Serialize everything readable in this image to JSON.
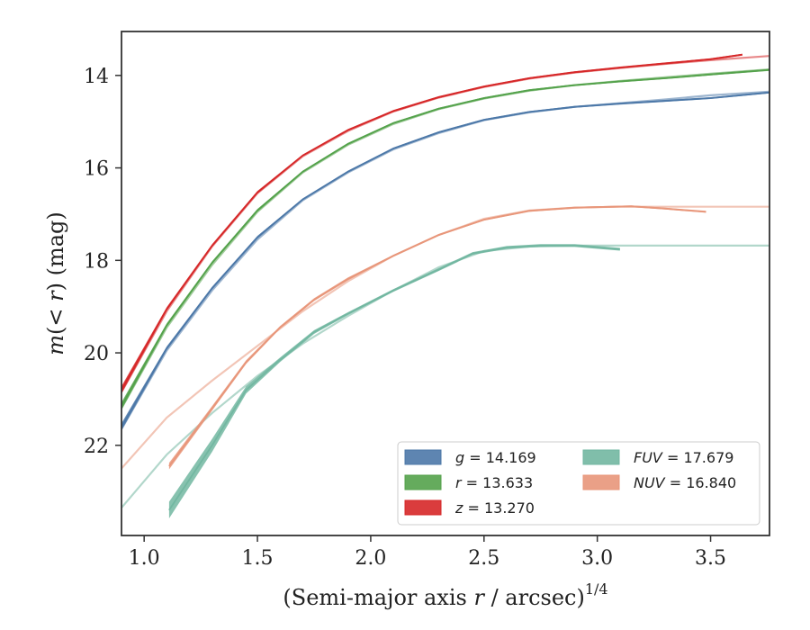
{
  "chart_data": {
    "type": "line",
    "xlabel_prefix": "(Semi-major axis ",
    "xlabel_var": "r",
    "xlabel_suffix": " / arcsec)",
    "xlabel_exp": "1/4",
    "ylabel_var_m": "m",
    "ylabel_mid": "(< ",
    "ylabel_var_r": "r",
    "ylabel_suffix": ") (mag)",
    "xlim": [
      0.9,
      3.76
    ],
    "ylim": [
      23.95,
      13.05
    ],
    "y_inverted": true,
    "xticks": [
      {
        "value": 1.0,
        "label": "1.0"
      },
      {
        "value": 1.5,
        "label": "1.5"
      },
      {
        "value": 2.0,
        "label": "2.0"
      },
      {
        "value": 2.5,
        "label": "2.5"
      },
      {
        "value": 3.0,
        "label": "3.0"
      },
      {
        "value": 3.5,
        "label": "3.5"
      }
    ],
    "yticks": [
      {
        "value": 14,
        "label": "14"
      },
      {
        "value": 16,
        "label": "16"
      },
      {
        "value": 18,
        "label": "18"
      },
      {
        "value": 20,
        "label": "20"
      },
      {
        "value": 22,
        "label": "22"
      }
    ],
    "legend_position": "lower-right",
    "legend_columns": 2,
    "series": [
      {
        "name": "g",
        "total": "14.169",
        "color": "#4c78a8",
        "model": {
          "x": [
            0.9,
            1.1,
            1.3,
            1.5,
            1.7,
            1.9,
            2.1,
            2.3,
            2.5,
            2.7,
            2.9,
            3.1,
            3.3,
            3.5,
            3.76
          ],
          "y": [
            21.65,
            19.95,
            18.65,
            17.55,
            16.7,
            16.1,
            15.6,
            15.25,
            14.97,
            14.8,
            14.68,
            14.6,
            14.52,
            14.43,
            14.35
          ]
        },
        "measured": {
          "x": [
            0.9,
            1.1,
            1.3,
            1.5,
            1.7,
            1.9,
            2.1,
            2.3,
            2.5,
            2.7,
            2.9,
            3.1,
            3.3,
            3.5,
            3.76
          ],
          "y": [
            21.6,
            19.9,
            18.6,
            17.5,
            16.68,
            16.08,
            15.58,
            15.23,
            14.96,
            14.79,
            14.68,
            14.61,
            14.55,
            14.49,
            14.37
          ],
          "band": [
            0.08,
            0.04,
            0.03,
            0.03,
            0.02,
            0.02,
            0.02,
            0.02,
            0.02,
            0.02,
            0.02,
            0.02,
            0.02,
            0.02,
            0.02
          ]
        }
      },
      {
        "name": "r",
        "total": "13.633",
        "color": "#54a24b",
        "model": {
          "x": [
            0.9,
            1.1,
            1.3,
            1.5,
            1.7,
            1.9,
            2.1,
            2.3,
            2.5,
            2.7,
            2.9,
            3.1,
            3.3,
            3.5,
            3.76
          ],
          "y": [
            21.2,
            19.45,
            18.1,
            16.95,
            16.1,
            15.5,
            15.05,
            14.73,
            14.5,
            14.33,
            14.21,
            14.12,
            14.04,
            13.96,
            13.87
          ]
        },
        "measured": {
          "x": [
            0.9,
            1.1,
            1.3,
            1.5,
            1.7,
            1.9,
            2.1,
            2.3,
            2.5,
            2.7,
            2.9,
            3.1,
            3.3,
            3.5,
            3.76
          ],
          "y": [
            21.15,
            19.4,
            18.05,
            16.92,
            16.08,
            15.48,
            15.03,
            14.72,
            14.49,
            14.32,
            14.21,
            14.13,
            14.06,
            13.98,
            13.88
          ],
          "band": [
            0.08,
            0.04,
            0.03,
            0.03,
            0.02,
            0.02,
            0.02,
            0.02,
            0.02,
            0.02,
            0.02,
            0.02,
            0.02,
            0.02,
            0.02
          ]
        }
      },
      {
        "name": "z",
        "total": "13.270",
        "color": "#d62728",
        "model": {
          "x": [
            0.9,
            1.1,
            1.3,
            1.5,
            1.7,
            1.9,
            2.1,
            2.3,
            2.5,
            2.7,
            2.9,
            3.1,
            3.3,
            3.5,
            3.76
          ],
          "y": [
            20.85,
            19.1,
            17.7,
            16.55,
            15.75,
            15.2,
            14.78,
            14.48,
            14.25,
            14.07,
            13.94,
            13.84,
            13.75,
            13.67,
            13.58
          ]
        },
        "measured": {
          "x": [
            0.9,
            1.1,
            1.3,
            1.5,
            1.7,
            1.9,
            2.1,
            2.3,
            2.5,
            2.7,
            2.9,
            3.1,
            3.3,
            3.5,
            3.64
          ],
          "y": [
            20.8,
            19.05,
            17.68,
            16.53,
            15.73,
            15.18,
            14.77,
            14.47,
            14.24,
            14.06,
            13.93,
            13.83,
            13.74,
            13.65,
            13.55
          ],
          "band": [
            0.08,
            0.04,
            0.03,
            0.03,
            0.02,
            0.02,
            0.02,
            0.02,
            0.02,
            0.02,
            0.02,
            0.02,
            0.02,
            0.02,
            0.02
          ]
        }
      },
      {
        "name": "FUV",
        "total": "17.679",
        "color": "#72b7a1",
        "model": {
          "x": [
            0.9,
            1.1,
            1.3,
            1.5,
            1.7,
            1.9,
            2.1,
            2.3,
            2.5,
            2.7,
            2.9,
            3.1,
            3.3,
            3.5,
            3.76
          ],
          "y": [
            23.35,
            22.2,
            21.3,
            20.5,
            19.8,
            19.2,
            18.65,
            18.15,
            17.8,
            17.7,
            17.68,
            17.68,
            17.68,
            17.68,
            17.68
          ]
        },
        "measured": {
          "x": [
            1.11,
            1.3,
            1.45,
            1.6,
            1.75,
            1.9,
            2.1,
            2.3,
            2.45,
            2.6,
            2.75,
            2.9,
            3.1
          ],
          "y": [
            23.4,
            22.0,
            20.8,
            20.15,
            19.55,
            19.15,
            18.65,
            18.2,
            17.85,
            17.72,
            17.68,
            17.68,
            17.76
          ],
          "band": [
            0.18,
            0.14,
            0.08,
            0.05,
            0.04,
            0.03,
            0.03,
            0.03,
            0.03,
            0.03,
            0.03,
            0.03,
            0.03
          ]
        }
      },
      {
        "name": "NUV",
        "total": "16.840",
        "color": "#e8967a",
        "model": {
          "x": [
            0.9,
            1.1,
            1.3,
            1.5,
            1.7,
            1.9,
            2.1,
            2.3,
            2.5,
            2.7,
            2.9,
            3.1,
            3.3,
            3.5,
            3.76
          ],
          "y": [
            22.5,
            21.4,
            20.6,
            19.85,
            19.1,
            18.45,
            17.9,
            17.45,
            17.1,
            16.92,
            16.86,
            16.84,
            16.84,
            16.84,
            16.84
          ]
        },
        "measured": {
          "x": [
            1.11,
            1.3,
            1.45,
            1.6,
            1.75,
            1.9,
            2.1,
            2.3,
            2.5,
            2.7,
            2.9,
            3.15,
            3.3,
            3.48
          ],
          "y": [
            22.45,
            21.2,
            20.2,
            19.45,
            18.85,
            18.4,
            17.9,
            17.45,
            17.12,
            16.93,
            16.86,
            16.83,
            16.88,
            16.95
          ],
          "band": [
            0.07,
            0.05,
            0.04,
            0.03,
            0.03,
            0.03,
            0.02,
            0.02,
            0.02,
            0.02,
            0.02,
            0.02,
            0.02,
            0.02
          ]
        }
      }
    ]
  }
}
